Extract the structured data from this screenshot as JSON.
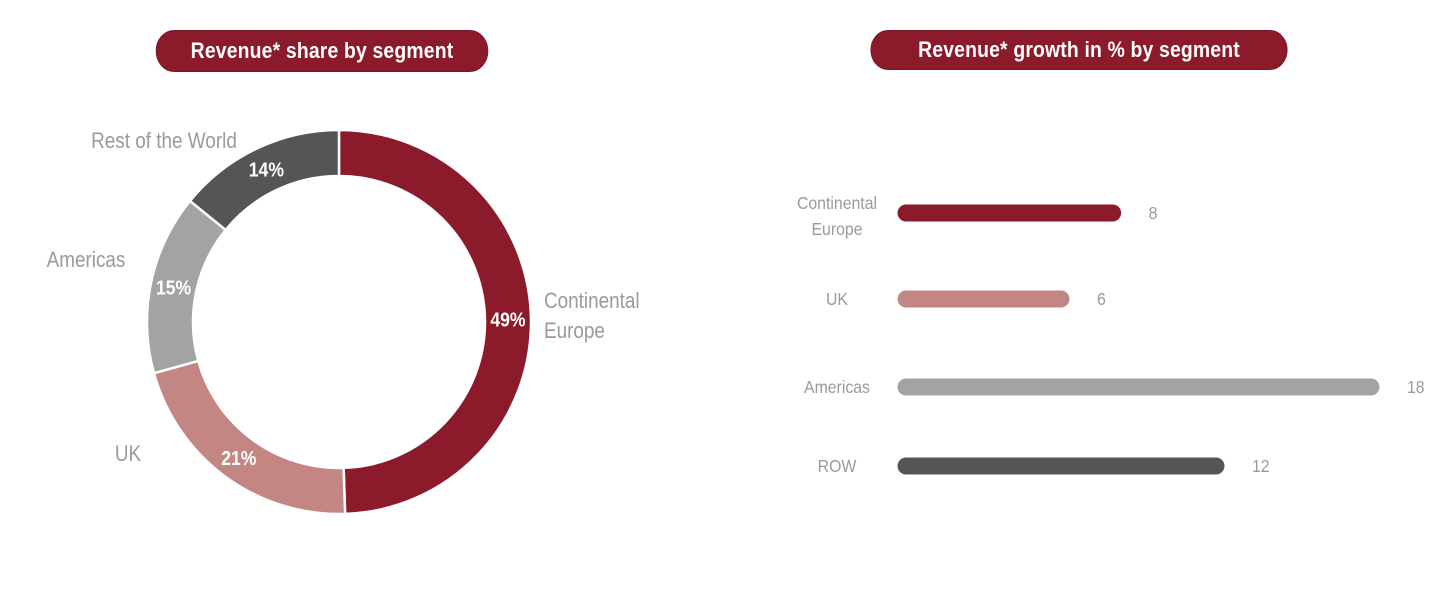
{
  "chart_data": [
    {
      "type": "pie",
      "title": "Revenue* share by segment",
      "categories": [
        "Continental Europe",
        "UK",
        "Americas",
        "Rest of the World"
      ],
      "values": [
        49,
        21,
        15,
        14
      ],
      "value_labels": [
        "49%",
        "21%",
        "15%",
        "14%"
      ],
      "label_lines": [
        [
          "Continental",
          "Europe"
        ],
        [
          "UK"
        ],
        [
          "Americas"
        ],
        [
          "Rest of the World"
        ]
      ],
      "colors": [
        "#8b1a2b",
        "#c48683",
        "#a3a3a3",
        "#555555"
      ]
    },
    {
      "type": "bar",
      "orientation": "horizontal",
      "title": "Revenue* growth in % by segment",
      "categories": [
        "Continental Europe",
        "UK",
        "Americas",
        "ROW"
      ],
      "label_lines": [
        [
          "Continental",
          "Europe"
        ],
        [
          "UK"
        ],
        [
          "Americas"
        ],
        [
          "ROW"
        ]
      ],
      "values": [
        8,
        6,
        18,
        12
      ],
      "xlim": [
        0,
        18
      ],
      "colors": [
        "#8b1a2b",
        "#c48683",
        "#a3a3a3",
        "#555555"
      ]
    }
  ]
}
